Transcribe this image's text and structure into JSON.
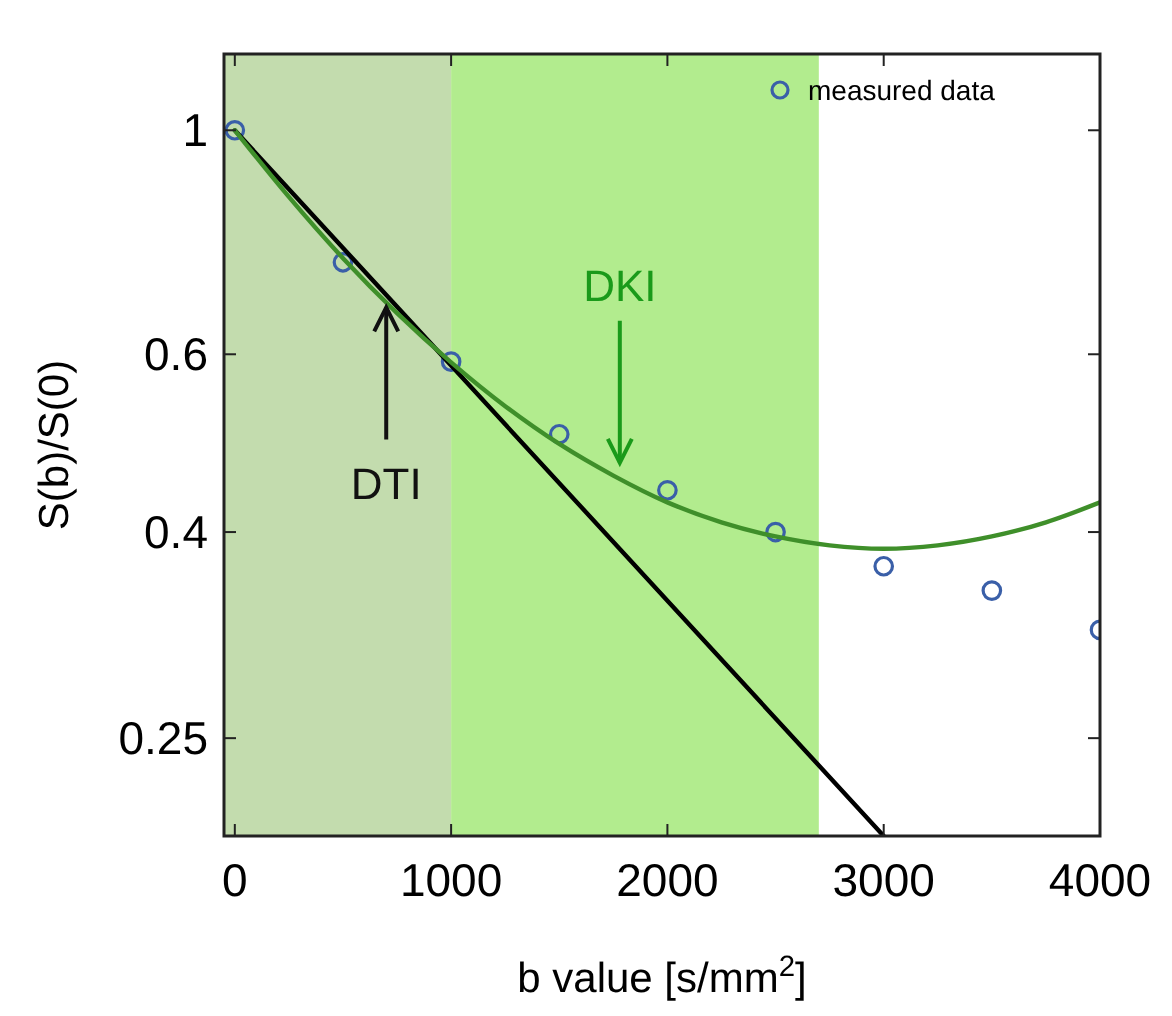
{
  "chart_data": {
    "type": "scatter",
    "xlabel": "b value [s/mm$^{2}$]",
    "ylabel": "S(b)/S(0)",
    "log": "y",
    "xlim": [
      -50,
      4000
    ],
    "ylim": [
      0.2,
      1.19
    ],
    "xticks": [
      0,
      1000,
      2000,
      3000,
      4000
    ],
    "yticks": [
      0.25,
      0.4,
      0.6,
      1
    ],
    "grid": false,
    "legend": "top right",
    "marker": "circle",
    "line_style": "solid",
    "bands": [
      {
        "axis": "x",
        "from": -50,
        "to": 1000,
        "color": "#c3dcae"
      },
      {
        "axis": "x",
        "from": 1000,
        "to": 2700,
        "color": "#b2ec8e"
      }
    ],
    "series": [
      {
        "name": "measured data",
        "color": "#3a5fa8",
        "x": [
          0,
          500,
          1000,
          1500,
          2000,
          2500,
          3000,
          3500,
          4000
        ],
        "values": [
          1.0,
          0.74,
          0.59,
          0.5,
          0.44,
          0.4,
          0.37,
          0.35,
          0.32
        ]
      },
      {
        "type": "line",
        "marker": "none",
        "color": "#000000",
        "x": [
          0,
          3000
        ],
        "values": [
          1.0,
          0.2
        ]
      },
      {
        "type": "line",
        "marker": "none",
        "color": "#3f8f2a",
        "x": [
          0,
          250,
          500,
          750,
          1000,
          1250,
          1500,
          1750,
          2000,
          2250,
          2500,
          2750,
          3000,
          3250,
          3500,
          3750,
          4000
        ],
        "values": [
          1.0,
          0.859,
          0.747,
          0.659,
          0.589,
          0.533,
          0.489,
          0.455,
          0.428,
          0.409,
          0.396,
          0.388,
          0.385,
          0.388,
          0.396,
          0.409,
          0.428
        ]
      }
    ],
    "annotations": [
      {
        "text": "DTI",
        "x": 700,
        "y": 0.68
      },
      {
        "text": "DKI",
        "x": 1780,
        "y": 0.46
      }
    ]
  }
}
